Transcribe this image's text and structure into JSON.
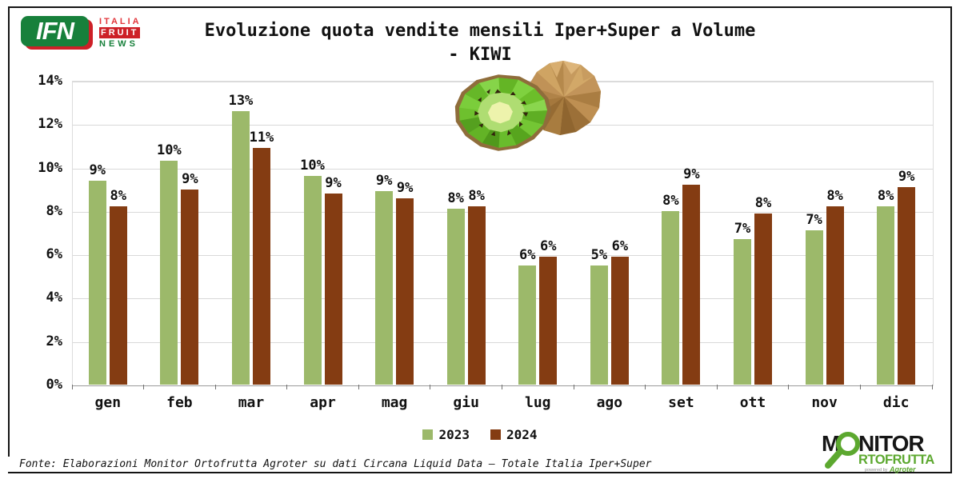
{
  "header": {
    "ifn_logo": {
      "abbr": "IFN",
      "line1": "ITALIA",
      "line2": "FRUIT",
      "line3": "NEWS"
    },
    "title_line1": "Evoluzione quota vendite mensili Iper+Super a Volume",
    "title_line2": "- KIWI"
  },
  "chart_data": {
    "type": "bar",
    "title": "Evoluzione quota vendite mensili Iper+Super a Volume - KIWI",
    "categories": [
      "gen",
      "feb",
      "mar",
      "apr",
      "mag",
      "giu",
      "lug",
      "ago",
      "set",
      "ott",
      "nov",
      "dic"
    ],
    "series": [
      {
        "name": "2023",
        "color": "#9CB96A",
        "values": [
          9.4,
          10.3,
          12.6,
          9.6,
          8.9,
          8.1,
          5.5,
          5.5,
          8.0,
          6.7,
          7.1,
          8.2
        ],
        "labels": [
          "9%",
          "10%",
          "13%",
          "10%",
          "9%",
          "8%",
          "6%",
          "5%",
          "8%",
          "7%",
          "7%",
          "8%"
        ]
      },
      {
        "name": "2024",
        "color": "#843C12",
        "values": [
          8.2,
          9.0,
          10.9,
          8.8,
          8.6,
          8.2,
          5.9,
          5.9,
          9.2,
          7.9,
          8.2,
          9.1
        ],
        "labels": [
          "8%",
          "9%",
          "11%",
          "9%",
          "9%",
          "8%",
          "6%",
          "6%",
          "9%",
          "8%",
          "8%",
          "9%"
        ]
      }
    ],
    "ylim": [
      0,
      14
    ],
    "ytick_step": 2,
    "yticks": [
      "14%",
      "12%",
      "10%",
      "8%",
      "6%",
      "4%",
      "2%",
      "0%"
    ],
    "grid": true,
    "legend_position": "bottom"
  },
  "legend": [
    {
      "label": "2023",
      "color": "#9CB96A"
    },
    {
      "label": "2024",
      "color": "#843C12"
    }
  ],
  "footer": {
    "fonte": "Fonte: Elaborazioni Monitor Ortofrutta Agroter su dati Circana Liquid Data – Totale Italia Iper+Super"
  },
  "monitor_logo": {
    "m": "M",
    "nitor": "NITOR",
    "row2": "RTOFRUTTA",
    "powered_by": "powered by",
    "agroter": "Agroter",
    "green": "#5CA82F"
  },
  "icons": {
    "kiwi_illustration": "kiwi-fruit-lowpoly"
  }
}
